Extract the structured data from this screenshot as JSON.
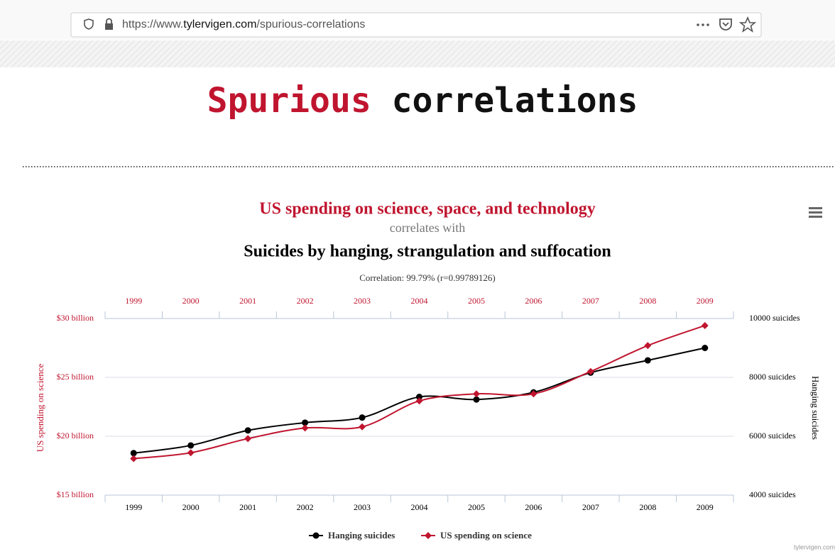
{
  "browser": {
    "url_prefix": "https://www.",
    "url_domain": "tylervigen.com",
    "url_path": "/spurious-correlations"
  },
  "logo": {
    "word1": "Spurious",
    "word2": "correlations"
  },
  "footer": "tylervigen.com",
  "chart_data": {
    "type": "line",
    "title": "US spending on science, space, and technology",
    "subtitle": "correlates with",
    "title2": "Suicides by hanging, strangulation and suffocation",
    "correlation": "Correlation: 99.79% (r=0.99789126)",
    "y_label": "US spending on science",
    "y2_label": "Hanging suicides",
    "categories": [
      "1999",
      "2000",
      "2001",
      "2002",
      "2003",
      "2004",
      "2005",
      "2006",
      "2007",
      "2008",
      "2009"
    ],
    "ylim": [
      15,
      30
    ],
    "yticks": [
      {
        "value": 15,
        "label": "$15 billion"
      },
      {
        "value": 20,
        "label": "$20 billion"
      },
      {
        "value": 25,
        "label": "$25 billion"
      },
      {
        "value": 30,
        "label": "$30 billion"
      }
    ],
    "y2lim": [
      4000,
      10000
    ],
    "y2ticks": [
      {
        "value": 4000,
        "label": "4000 suicides"
      },
      {
        "value": 6000,
        "label": "6000 suicides"
      },
      {
        "value": 8000,
        "label": "8000 suicides"
      },
      {
        "value": 10000,
        "label": "10000 suicides"
      }
    ],
    "grid": true,
    "series": [
      {
        "name": "Hanging suicides",
        "color": "#000000",
        "axis": "y2",
        "marker": "circle",
        "values": [
          5427,
          5688,
          6198,
          6462,
          6635,
          7336,
          7248,
          7491,
          8161,
          8578,
          9000
        ]
      },
      {
        "name": "US spending on science",
        "color": "#c0152f",
        "axis": "y",
        "marker": "diamond",
        "values": [
          18.1,
          18.6,
          19.8,
          20.7,
          20.8,
          23.0,
          23.6,
          23.6,
          25.5,
          27.7,
          29.4
        ]
      }
    ]
  }
}
